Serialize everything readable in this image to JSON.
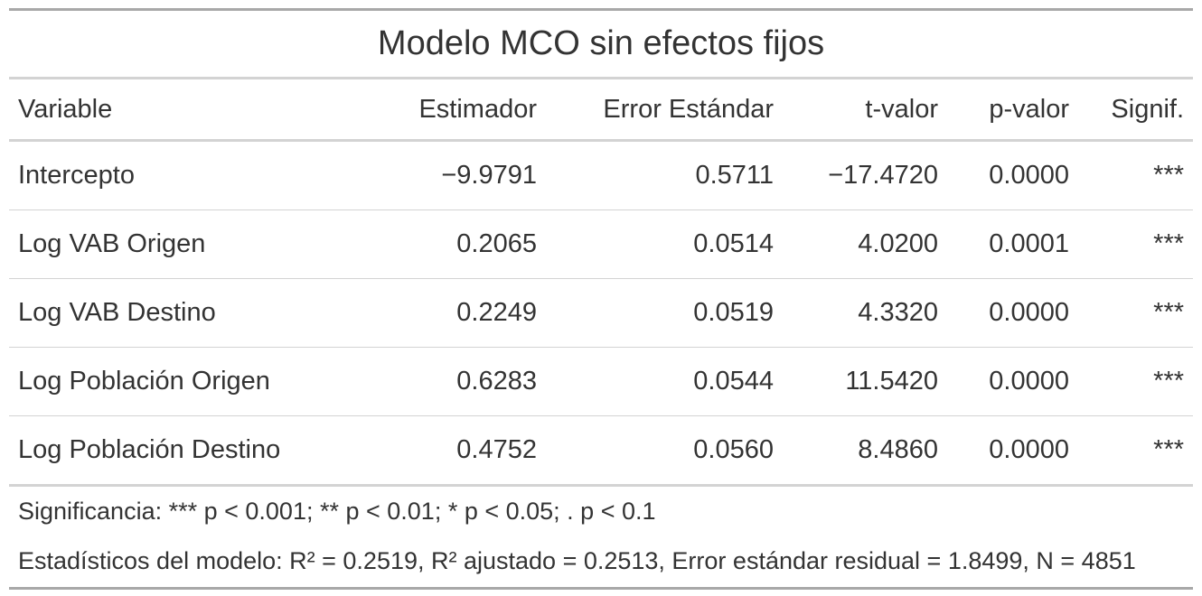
{
  "title": "Modelo MCO sin efectos fijos",
  "table": {
    "columns": [
      "Variable",
      "Estimador",
      "Error Estándar",
      "t-valor",
      "p-valor",
      "Signif."
    ],
    "rows": [
      [
        "Intercepto",
        "−9.9791",
        "0.5711",
        "−17.4720",
        "0.0000",
        "***"
      ],
      [
        "Log VAB Origen",
        "0.2065",
        "0.0514",
        "4.0200",
        "0.0001",
        "***"
      ],
      [
        "Log VAB Destino",
        "0.2249",
        "0.0519",
        "4.3320",
        "0.0000",
        "***"
      ],
      [
        "Log Población Origen",
        "0.6283",
        "0.0544",
        "11.5420",
        "0.0000",
        "***"
      ],
      [
        "Log Población Destino",
        "0.4752",
        "0.0560",
        "8.4860",
        "0.0000",
        "***"
      ]
    ]
  },
  "footnotes": [
    "Significancia: *** p < 0.001; ** p < 0.01; * p < 0.05; . p < 0.1",
    "Estadísticos del modelo: R² = 0.2519, R² ajustado = 0.2513, Error estándar residual = 1.8499, N = 4851"
  ]
}
